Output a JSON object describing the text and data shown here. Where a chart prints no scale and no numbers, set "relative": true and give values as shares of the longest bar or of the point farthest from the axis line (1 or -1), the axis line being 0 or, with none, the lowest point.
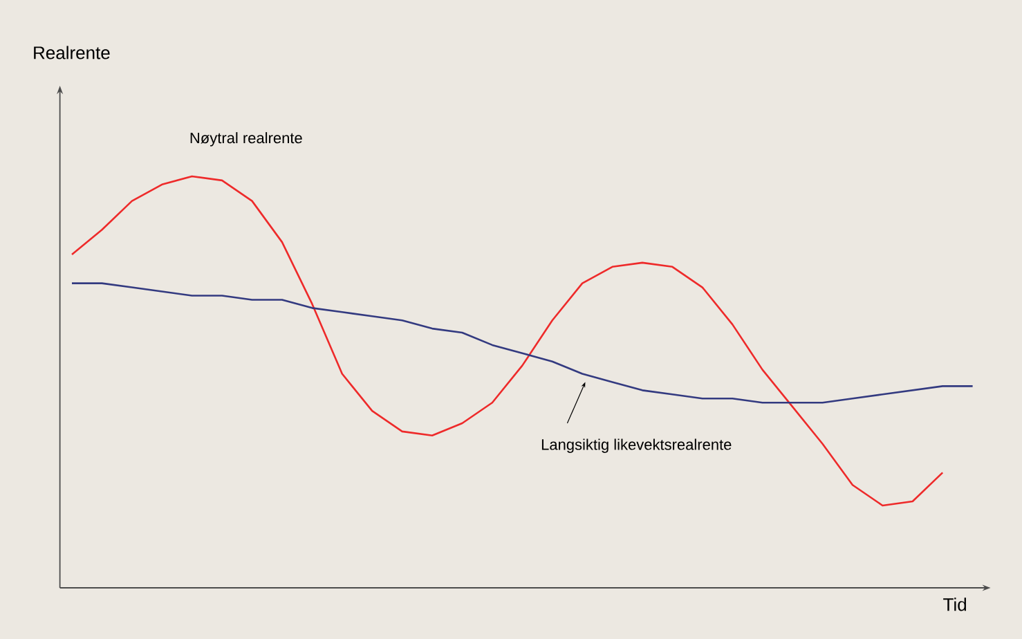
{
  "chart_data": {
    "type": "line",
    "relative": true,
    "xlabel": "Tid",
    "annotations": [
      "Realrente"
    ],
    "categories": [
      null,
      null,
      null,
      null,
      null,
      null,
      null,
      null,
      null,
      null,
      null,
      null,
      null,
      null,
      null,
      null,
      null,
      null,
      null,
      null,
      null,
      null,
      null,
      null,
      null,
      null,
      null,
      null,
      null,
      null,
      null
    ],
    "series": [
      {
        "name": "Nøytral realrente",
        "color": "#ee2a2a",
        "values": [
          0.81,
          0.87,
          0.94,
          0.98,
          1.0,
          0.99,
          0.94,
          0.84,
          0.69,
          0.52,
          0.43,
          0.38,
          0.37,
          0.4,
          0.45,
          0.54,
          0.65,
          0.74,
          0.78,
          0.79,
          0.78,
          0.73,
          0.64,
          0.53,
          0.44,
          0.35,
          0.25,
          0.2,
          0.21,
          0.28,
          null
        ]
      },
      {
        "name": "Langsiktig likevektsrealrente",
        "color": "#333a80",
        "values": [
          0.74,
          0.74,
          0.73,
          0.72,
          0.71,
          0.71,
          0.7,
          0.7,
          0.68,
          0.67,
          0.66,
          0.65,
          0.63,
          0.62,
          0.59,
          0.57,
          0.55,
          0.52,
          0.5,
          0.48,
          0.47,
          0.46,
          0.46,
          0.45,
          0.45,
          0.45,
          0.46,
          0.47,
          0.48,
          0.49,
          0.49
        ]
      }
    ],
    "marker": "none",
    "line_style": "solid"
  }
}
